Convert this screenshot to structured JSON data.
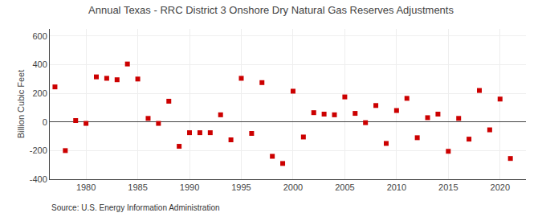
{
  "chart_data": {
    "type": "scatter",
    "title": "Annual Texas - RRC District 3 Onshore Dry Natural Gas Reserves Adjustments",
    "ylabel": "Billion Cubic Feet",
    "annotations": [
      "Source: U.S. Energy Information Administration"
    ],
    "color": "#cc0000",
    "marker": "square",
    "grid": true,
    "xlim": [
      1976.5,
      2022.5
    ],
    "xticks": [
      1980,
      1985,
      1990,
      1995,
      2000,
      2005,
      2010,
      2015,
      2020
    ],
    "ylim": [
      -400,
      650
    ],
    "yticks": [
      -400,
      -200,
      0,
      200,
      400,
      600
    ],
    "x": [
      1977,
      1978,
      1979,
      1980,
      1981,
      1982,
      1983,
      1984,
      1985,
      1986,
      1987,
      1988,
      1989,
      1990,
      1991,
      1992,
      1993,
      1994,
      1995,
      1996,
      1997,
      1998,
      1999,
      2000,
      2001,
      2002,
      2003,
      2004,
      2005,
      2006,
      2007,
      2008,
      2009,
      2010,
      2011,
      2012,
      2013,
      2014,
      2015,
      2016,
      2017,
      2018,
      2019,
      2020,
      2021
    ],
    "values": [
      245,
      -200,
      10,
      -10,
      315,
      305,
      295,
      405,
      300,
      25,
      -10,
      145,
      -170,
      -75,
      -75,
      -75,
      50,
      -125,
      305,
      -80,
      275,
      -240,
      -290,
      215,
      -105,
      65,
      55,
      50,
      175,
      60,
      -5,
      115,
      -150,
      80,
      165,
      -110,
      30,
      55,
      -205,
      25,
      -120,
      220,
      -55,
      160,
      -255
    ]
  }
}
